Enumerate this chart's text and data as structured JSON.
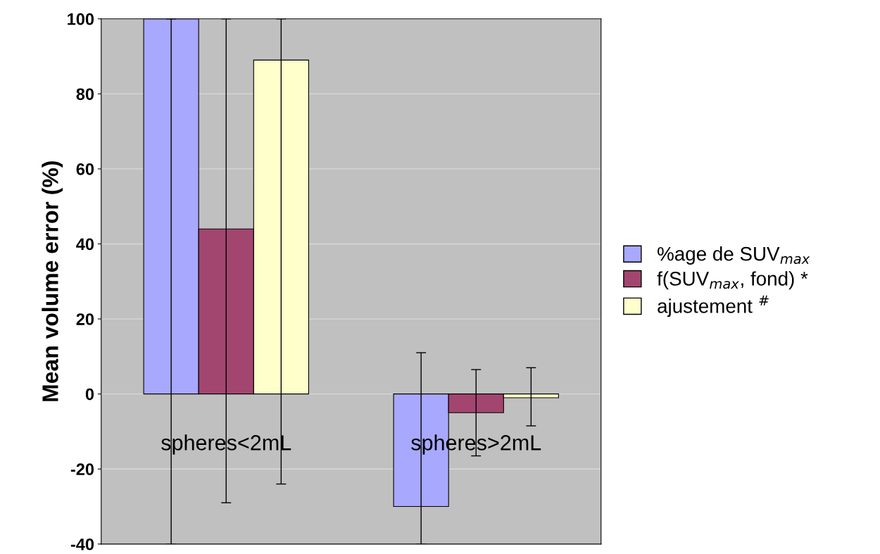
{
  "chart_data": {
    "type": "bar",
    "ylabel": "Mean volume error (%)",
    "categories": [
      "spheres<2mL",
      "spheres>2mL"
    ],
    "series": [
      {
        "name": "%age de SUV$_{max}$",
        "color": "#a8a8ff",
        "values": [
          100,
          -30
        ],
        "errors": [
          [
            -40,
            100
          ],
          [
            -40,
            11
          ]
        ]
      },
      {
        "name": "f(SUV$_{max}$, fond) *",
        "color": "#a3466f",
        "values": [
          44,
          -5
        ],
        "errors": [
          [
            -29,
            100
          ],
          [
            -16.5,
            6.5
          ]
        ]
      },
      {
        "name": "ajustement $^{#}$",
        "color": "#ffffcc",
        "values": [
          89,
          -1
        ],
        "errors": [
          [
            -24,
            100
          ],
          [
            -8.5,
            7
          ]
        ]
      }
    ],
    "ylim": [
      -40,
      100
    ],
    "yticks": [
      -40,
      -20,
      0,
      20,
      40,
      60,
      80,
      100
    ],
    "grid": "y",
    "legend": "right"
  }
}
